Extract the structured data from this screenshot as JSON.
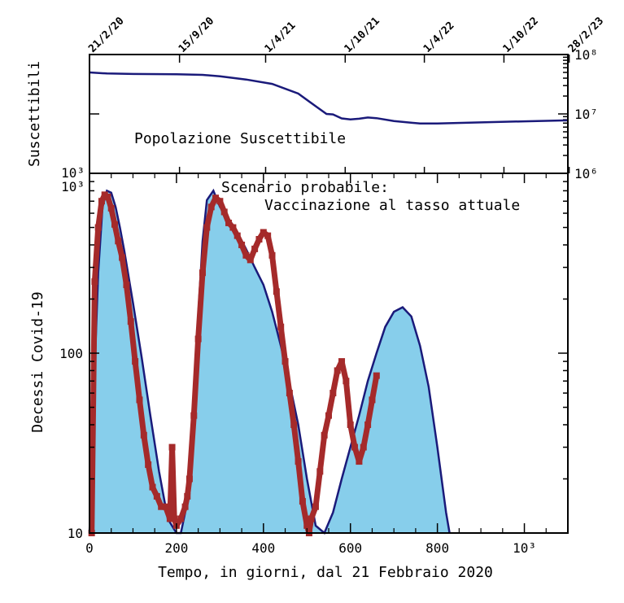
{
  "chart_data": [
    {
      "type": "line",
      "panel": "top",
      "ylabel": "Suscettibili",
      "annotation": "Popolazione Suscettibile",
      "yscale": "log",
      "ylim": [
        1000000,
        100000000
      ],
      "left_axis_label": "10³",
      "right_tick_labels": [
        "10⁸",
        "10⁷",
        "10⁶"
      ],
      "date_tick_labels": [
        "21/2/20",
        "15/9/20",
        "1/4/21",
        "1/10/21",
        "1/4/22",
        "1/10/22",
        "28/2/23"
      ],
      "date_tick_days": [
        0,
        207,
        405,
        588,
        770,
        953,
        1103
      ],
      "xlim": [
        0,
        1100
      ],
      "series": [
        {
          "color": "#1a1a7a",
          "x": [
            0,
            40,
            100,
            200,
            260,
            300,
            360,
            420,
            480,
            520,
            545,
            560,
            580,
            600,
            620,
            640,
            660,
            700,
            760,
            800,
            900,
            1000,
            1100
          ],
          "y": [
            50000000,
            48000000,
            47000000,
            46500000,
            45500000,
            43000000,
            38000000,
            32000000,
            22000000,
            13500000,
            10000000,
            9800000,
            8400000,
            8100000,
            8300000,
            8700000,
            8500000,
            7600000,
            6900000,
            6900000,
            7200000,
            7500000,
            7800000
          ]
        }
      ]
    },
    {
      "type": "area",
      "panel": "bottom",
      "xlabel": "Tempo, in giorni, dal 21 Febbraio 2020",
      "ylabel": "Decessi Covid-19",
      "annotation_line1": "Scenario probabile:",
      "annotation_line2": "Vaccinazione al tasso attuale",
      "yscale": "log",
      "ylim": [
        10,
        1000
      ],
      "xlim": [
        0,
        1100
      ],
      "x_tick_labels": [
        "0",
        "200",
        "400",
        "600",
        "800",
        "10³"
      ],
      "x_tick_values": [
        0,
        200,
        400,
        600,
        800,
        1000
      ],
      "y_tick_labels": [
        "10",
        "100",
        "10³"
      ],
      "y_tick_values": [
        10,
        100,
        1000
      ],
      "colors": {
        "fill": "#87ceeb",
        "model": "#1a1a7a",
        "data": "#a52a2a"
      },
      "series": [
        {
          "kind": "model-fill",
          "x": [
            0,
            10,
            20,
            30,
            40,
            50,
            60,
            70,
            80,
            100,
            120,
            140,
            160,
            180,
            200,
            210,
            220,
            230,
            240,
            250,
            260,
            270,
            285,
            300,
            320,
            340,
            360,
            380,
            400,
            420,
            440,
            460,
            480,
            500,
            520,
            540,
            560,
            580,
            600,
            620,
            640,
            660,
            680,
            700,
            720,
            740,
            760,
            780,
            800,
            820,
            828
          ],
          "y": [
            10,
            60,
            280,
            650,
            800,
            780,
            650,
            500,
            370,
            190,
            95,
            45,
            22,
            12,
            10,
            10,
            13,
            25,
            60,
            160,
            420,
            710,
            800,
            650,
            560,
            470,
            380,
            300,
            240,
            170,
            110,
            68,
            40,
            20,
            11,
            10,
            13,
            20,
            30,
            45,
            70,
            100,
            140,
            170,
            180,
            160,
            110,
            65,
            30,
            13,
            10
          ]
        },
        {
          "kind": "data",
          "x": [
            5,
            12,
            20,
            28,
            35,
            42,
            50,
            58,
            66,
            75,
            85,
            95,
            105,
            115,
            125,
            135,
            145,
            155,
            165,
            175,
            185,
            190,
            195,
            200,
            210,
            220,
            225,
            230,
            240,
            250,
            260,
            270,
            280,
            290,
            300,
            310,
            320,
            330,
            340,
            350,
            360,
            370,
            380,
            390,
            400,
            410,
            420,
            430,
            440,
            450,
            460,
            470,
            480,
            490,
            500,
            505,
            510,
            520,
            530,
            540,
            550,
            560,
            570,
            580,
            590,
            600,
            610,
            620,
            630,
            640,
            650,
            660
          ],
          "y": [
            10,
            250,
            500,
            700,
            760,
            740,
            640,
            520,
            420,
            340,
            240,
            150,
            90,
            55,
            35,
            24,
            18,
            16,
            14,
            14,
            12,
            30,
            12,
            11,
            12,
            14,
            16,
            20,
            45,
            120,
            280,
            500,
            650,
            730,
            700,
            610,
            530,
            500,
            450,
            400,
            350,
            330,
            380,
            430,
            470,
            450,
            350,
            220,
            140,
            90,
            60,
            40,
            25,
            15,
            11,
            10,
            12,
            14,
            22,
            35,
            45,
            60,
            80,
            90,
            70,
            40,
            30,
            25,
            30,
            40,
            55,
            75
          ]
        }
      ]
    }
  ]
}
